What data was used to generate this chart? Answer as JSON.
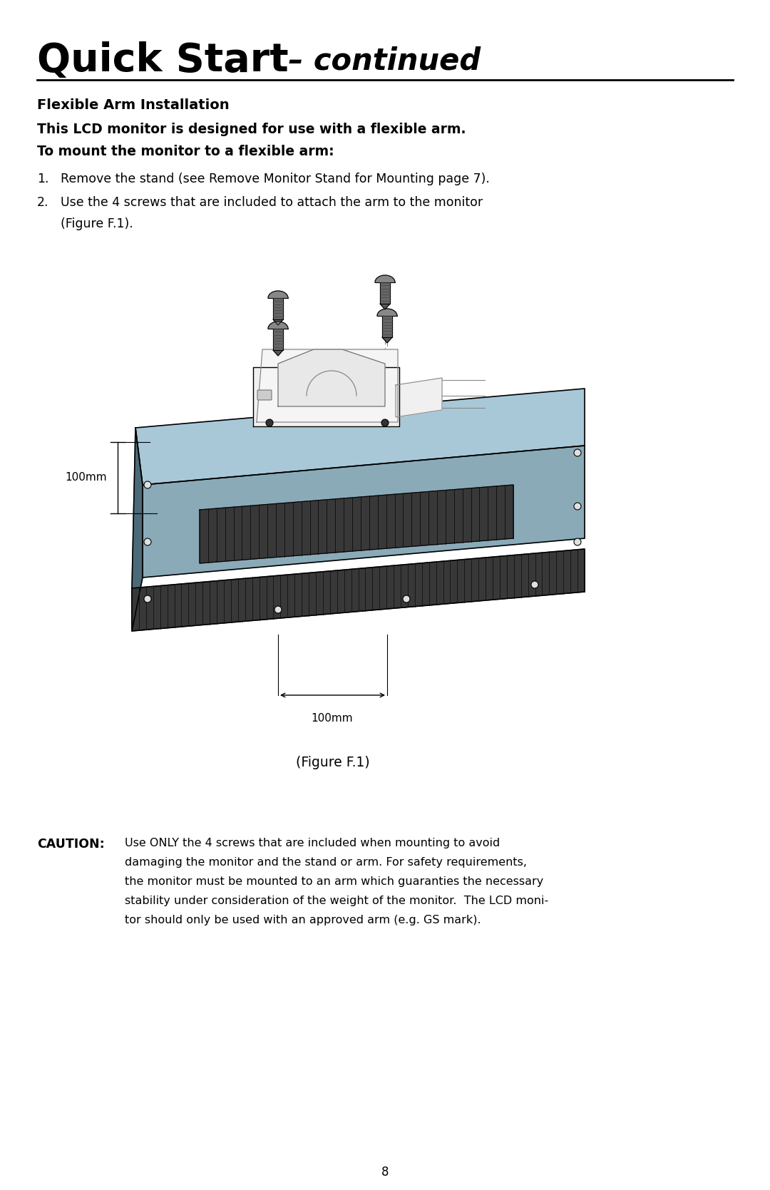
{
  "bg_color": "#ffffff",
  "title_bold": "Quick Start",
  "title_italic": " – continued",
  "section_heading": "Flexible Arm Installation",
  "intro_line1": "This LCD monitor is designed for use with a flexible arm.",
  "intro_line2": "To mount the monitor to a flexible arm:",
  "step1": "Remove the stand (see Remove Monitor Stand for Mounting page 7).",
  "step2a": "Use the 4 screws that are included to attach the arm to the monitor",
  "step2b": "(Figure F.1).",
  "figure_caption": "(Figure F.1)",
  "label_100mm_left": "100mm",
  "label_100mm_bottom": "100mm",
  "caution_label": "CAUTION:",
  "caution_line1": "Use ONLY the 4 screws that are included when mounting to avoid",
  "caution_line2": "damaging the monitor and the stand or arm. For safety requirements,",
  "caution_line3": "the monitor must be mounted to an arm which guaranties the necessary",
  "caution_line4": "stability under consideration of the weight of the monitor.  The LCD moni-",
  "caution_line5": "tor should only be used with an approved arm (e.g. GS mark).",
  "page_number": "8",
  "text_color": "#000000",
  "line_color": "#000000",
  "monitor_top_color": "#8aaab8",
  "monitor_top_light_color": "#a8c8d8",
  "monitor_side_color": "#6a8a98",
  "monitor_dark_side": "#4a6a78",
  "vent_color": "#2a2a2a",
  "vent_body_color": "#383838",
  "vent_side_color": "#252525",
  "bracket_color": "#e8e8e8",
  "bracket_outline": "#888888",
  "screw_head_color": "#888888",
  "screw_thread_color": "#666666"
}
